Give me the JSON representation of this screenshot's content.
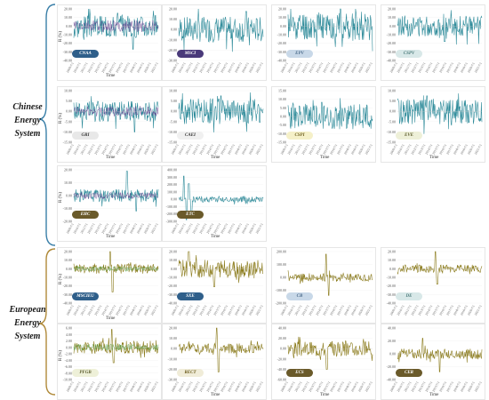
{
  "colors": {
    "chinese_primary": "#2e8b9a",
    "chinese_secondary": "#5b3a8a",
    "european_primary": "#8a7a1a",
    "european_secondary": "#4e9a3a",
    "brace_chinese": "#3a7fa8",
    "brace_european": "#b08a3a"
  },
  "groups": {
    "chinese": {
      "lines": [
        "Chinese",
        "Energy",
        "System"
      ]
    },
    "european": {
      "lines": [
        "European",
        "Energy",
        "System"
      ]
    }
  },
  "chart_data": [
    {
      "type": "line",
      "name": "CNAA",
      "badge_color": "#2f5f8a",
      "badge_text_color": "#ffffff",
      "group": "chinese",
      "xlabel": "Time",
      "ylabel": "R (%)",
      "ylim": [
        -40,
        20
      ],
      "yticks": [
        "20.00",
        "10.00",
        "0.00",
        "-10.00",
        "-20.00",
        "-30.00",
        "-40.00"
      ],
      "xticks": [
        "2009/7/1",
        "2010/7/1",
        "2011/7/1",
        "2012/7/1",
        "2013/7/1",
        "2014/7/1",
        "2015/7/1",
        "2016/7/1",
        "2017/7/1",
        "2018/7/1",
        "2019/7/1",
        "2020/7/1",
        "2021/7/1"
      ],
      "seed": 3,
      "amp": 0.45,
      "spikes": [
        [
          0.7,
          -0.9
        ],
        [
          0.52,
          0.5
        ]
      ],
      "overlay": true
    },
    {
      "type": "line",
      "name": "MSCI",
      "badge_color": "#4a3a7a",
      "badge_text_color": "#ffffff",
      "group": "chinese",
      "xlabel": "",
      "ylabel": "",
      "ylim": [
        -30,
        20
      ],
      "yticks": [
        "20.00",
        "10.00",
        "0.00",
        "-10.00",
        "-20.00",
        "-30.00"
      ],
      "xticks": [],
      "seed": 7,
      "amp": 0.5,
      "spikes": [
        [
          0.8,
          0.7
        ]
      ],
      "overlay": false
    },
    {
      "type": "line",
      "name": "EPV",
      "badge_color": "#c8d8e8",
      "badge_text_color": "#4a6a8a",
      "group": "chinese",
      "xlabel": "",
      "ylabel": "",
      "ylim": [
        -40,
        20
      ],
      "yticks": [
        "20.00",
        "10.00",
        "0.00",
        "-10.00",
        "-20.00",
        "-30.00",
        "-40.00"
      ],
      "xticks": [],
      "seed": 11,
      "amp": 0.55,
      "spikes": [
        [
          0.62,
          0.8
        ]
      ],
      "overlay": false
    },
    {
      "type": "line",
      "name": "CSPV",
      "badge_color": "#d8e8e8",
      "badge_text_color": "#4a7a7a",
      "group": "chinese",
      "xlabel": "",
      "ylabel": "",
      "ylim": [
        -40,
        20
      ],
      "yticks": [
        "20.00",
        "10.00",
        "0.00",
        "-10.00",
        "-20.00",
        "-30.00",
        "-40.00"
      ],
      "xticks": [],
      "seed": 13,
      "amp": 0.4,
      "spikes": [
        [
          0.56,
          -0.6
        ]
      ],
      "overlay": false
    },
    {
      "type": "line",
      "name": "GRI",
      "badge_color": "#e8e8e8",
      "badge_text_color": "#333333",
      "group": "chinese",
      "xlabel": "Time",
      "ylabel": "R (%)",
      "ylim": [
        -15,
        10
      ],
      "yticks": [
        "10.00",
        "5.00",
        "0.00",
        "-5.00",
        "-10.00",
        "-15.00"
      ],
      "xticks": [],
      "seed": 17,
      "amp": 0.4,
      "spikes": [
        [
          0.72,
          -0.8
        ]
      ],
      "overlay": true
    },
    {
      "type": "line",
      "name": "CAEI",
      "badge_color": "#f0f0f0",
      "badge_text_color": "#333333",
      "group": "chinese",
      "xlabel": "Time",
      "ylabel": "",
      "ylim": [
        -15,
        10
      ],
      "yticks": [
        "10.00",
        "5.00",
        "0.00",
        "-5.00",
        "-10.00",
        "-15.00"
      ],
      "xticks": [],
      "seed": 19,
      "amp": 0.5,
      "spikes": [
        [
          0.5,
          0.6
        ]
      ],
      "overlay": false
    },
    {
      "type": "line",
      "name": "CSPI",
      "badge_color": "#f5f0c8",
      "badge_text_color": "#6a5a1a",
      "group": "chinese",
      "xlabel": "Time",
      "ylabel": "",
      "ylim": [
        -15,
        15
      ],
      "yticks": [
        "15.00",
        "10.00",
        "5.00",
        "0.00",
        "-5.00",
        "-10.00",
        "-15.00"
      ],
      "xticks": [],
      "seed": 23,
      "amp": 0.5,
      "spikes": [
        [
          0.4,
          0.55
        ]
      ],
      "overlay": false
    },
    {
      "type": "line",
      "name": "EVE",
      "badge_color": "#eef0d8",
      "badge_text_color": "#5a5a2a",
      "group": "chinese",
      "xlabel": "Time",
      "ylabel": "",
      "ylim": [
        -15,
        10
      ],
      "yticks": [
        "10.00",
        "5.00",
        "0.00",
        "-5.00",
        "-10.00",
        "-15.00"
      ],
      "xticks": [],
      "seed": 29,
      "amp": 0.5,
      "spikes": [
        [
          0.35,
          0.6
        ]
      ],
      "overlay": false
    },
    {
      "type": "line",
      "name": "EHC",
      "badge_color": "#6a5a2a",
      "badge_text_color": "#ffffff",
      "group": "chinese",
      "xlabel": "Time",
      "ylabel": "R (%)",
      "ylim": [
        -20,
        20
      ],
      "yticks": [
        "20.00",
        "10.00",
        "0.00",
        "-10.00",
        "-20.00"
      ],
      "xticks": [],
      "seed": 31,
      "amp": 0.25,
      "spikes": [
        [
          0.63,
          0.95
        ],
        [
          0.74,
          -0.6
        ]
      ],
      "overlay": true
    },
    {
      "type": "line",
      "name": "ETC",
      "badge_color": "#6a5a2a",
      "badge_text_color": "#ffffff",
      "group": "chinese",
      "xlabel": "Time",
      "ylabel": "",
      "ylim": [
        -300,
        400
      ],
      "yticks": [
        "400.00",
        "300.00",
        "200.00",
        "100.00",
        "0.00",
        "-100.00",
        "-200.00",
        "-300.00"
      ],
      "xticks": [],
      "seed": 37,
      "amp": 0.12,
      "spikes": [
        [
          0.06,
          0.9
        ],
        [
          0.09,
          -0.8
        ],
        [
          0.12,
          0.6
        ],
        [
          0.15,
          -0.5
        ]
      ],
      "overlay": false
    },
    {
      "type": "line",
      "name": "MSCIEU",
      "badge_color": "#2f5f8a",
      "badge_text_color": "#ffffff",
      "group": "european",
      "xlabel": "Time",
      "ylabel": "R (%)",
      "ylim": [
        -40,
        20
      ],
      "yticks": [
        "20.00",
        "10.00",
        "0.00",
        "-10.00",
        "-20.00",
        "-30.00",
        "-40.00"
      ],
      "xticks": [],
      "seed": 41,
      "amp": 0.2,
      "spikes": [
        [
          0.43,
          0.8
        ],
        [
          0.46,
          -0.9
        ]
      ],
      "overlay": true
    },
    {
      "type": "line",
      "name": "SXE",
      "badge_color": "#2f5f8a",
      "badge_text_color": "#ffffff",
      "group": "european",
      "xlabel": "",
      "ylabel": "",
      "ylim": [
        -40,
        20
      ],
      "yticks": [
        "20.00",
        "10.00",
        "0.00",
        "-10.00",
        "-20.00",
        "-30.00",
        "-40.00"
      ],
      "xticks": [],
      "seed": 43,
      "amp": 0.35,
      "spikes": [
        [
          0.12,
          0.9
        ],
        [
          0.42,
          -0.7
        ]
      ],
      "overlay": false
    },
    {
      "type": "line",
      "name": "CB",
      "badge_color": "#c8d8e8",
      "badge_text_color": "#4a6a8a",
      "group": "european",
      "xlabel": "",
      "ylabel": "",
      "ylim": [
        -200,
        200
      ],
      "yticks": [
        "200.00",
        "100.00",
        "0.00",
        "-100.00",
        "-200.00"
      ],
      "xticks": [],
      "seed": 47,
      "amp": 0.15,
      "spikes": [
        [
          0.45,
          0.9
        ],
        [
          0.48,
          -0.7
        ]
      ],
      "overlay": false
    },
    {
      "type": "line",
      "name": "DE",
      "badge_color": "#d8e8e8",
      "badge_text_color": "#4a7a7a",
      "group": "european",
      "xlabel": "",
      "ylabel": "",
      "ylim": [
        -40,
        20
      ],
      "yticks": [
        "20.00",
        "10.00",
        "0.00",
        "-10.00",
        "-20.00",
        "-30.00",
        "-40.00"
      ],
      "xticks": [],
      "seed": 53,
      "amp": 0.15,
      "spikes": [
        [
          0.45,
          0.8
        ],
        [
          0.47,
          -0.6
        ]
      ],
      "overlay": false
    },
    {
      "type": "line",
      "name": "PFGB",
      "badge_color": "#eef0d8",
      "badge_text_color": "#5a5a2a",
      "group": "european",
      "xlabel": "",
      "ylabel": "R (%)",
      "ylim": [
        -10,
        6
      ],
      "yticks": [
        "6.00",
        "4.00",
        "2.00",
        "0.00",
        "-2.00",
        "-4.00",
        "-6.00",
        "-8.00",
        "-10.00"
      ],
      "xticks": [],
      "seed": 59,
      "amp": 0.25,
      "spikes": [
        [
          0.45,
          0.7
        ],
        [
          0.47,
          -0.6
        ]
      ],
      "overlay": true
    },
    {
      "type": "line",
      "name": "RECT",
      "badge_color": "#f0ecd8",
      "badge_text_color": "#6a5a1a",
      "group": "european",
      "xlabel": "Time",
      "ylabel": "",
      "ylim": [
        -30,
        20
      ],
      "yticks": [
        "20.00",
        "10.00",
        "0.00",
        "-10.00",
        "-20.00",
        "-30.00"
      ],
      "xticks": [],
      "seed": 61,
      "amp": 0.2,
      "spikes": [
        [
          0.45,
          0.8
        ],
        [
          0.47,
          -0.9
        ]
      ],
      "overlay": false
    },
    {
      "type": "line",
      "name": "ECS",
      "badge_color": "#6a5a2a",
      "badge_text_color": "#ffffff",
      "group": "european",
      "xlabel": "Time",
      "ylabel": "",
      "ylim": [
        -60,
        40
      ],
      "yticks": [
        "40.00",
        "20.00",
        "0.00",
        "-20.00",
        "-40.00",
        "-60.00"
      ],
      "xticks": [],
      "seed": 67,
      "amp": 0.3,
      "spikes": [
        [
          0.46,
          -0.8
        ]
      ],
      "overlay": false
    },
    {
      "type": "line",
      "name": "CER",
      "badge_color": "#6a5a2a",
      "badge_text_color": "#ffffff",
      "group": "european",
      "xlabel": "Time",
      "ylabel": "",
      "ylim": [
        -40,
        40
      ],
      "yticks": [
        "40.00",
        "20.00",
        "0.00",
        "-20.00",
        "-40.00"
      ],
      "xticks": [],
      "seed": 71,
      "amp": 0.2,
      "spikes": [
        [
          0.3,
          0.6
        ],
        [
          0.5,
          -0.7
        ]
      ],
      "overlay": false
    }
  ]
}
